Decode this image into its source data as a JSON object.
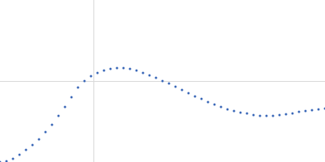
{
  "chart_data": {
    "type": "scatter",
    "x": [
      0,
      8,
      16,
      24,
      32,
      40,
      48,
      56,
      64,
      72,
      80,
      88,
      96,
      104,
      112,
      120,
      128,
      136,
      144,
      152,
      160,
      168,
      176,
      184,
      192,
      200,
      208,
      216,
      224,
      232,
      240,
      248,
      256,
      264,
      272,
      280,
      288,
      296,
      304,
      312,
      320,
      328,
      336,
      344,
      352,
      360,
      368,
      376,
      384,
      392,
      400
    ],
    "values": [
      0,
      1,
      4,
      9,
      15,
      21,
      28,
      37,
      46,
      57,
      68,
      80,
      92,
      100,
      106,
      110,
      113,
      115,
      116,
      116,
      115,
      113,
      110,
      107,
      104,
      100,
      97,
      93,
      89,
      85,
      81,
      78,
      74,
      71,
      68,
      65,
      63,
      61,
      60,
      58,
      57,
      57,
      57,
      58,
      59,
      60,
      62,
      63,
      64,
      65,
      66
    ],
    "color": "#3b68b8",
    "marker": "dot",
    "xlim": [
      0,
      400
    ],
    "ylim": [
      0,
      200
    ],
    "xticks": [
      115
    ],
    "yticks": [
      100
    ],
    "grid": true,
    "tick_labels": false
  }
}
